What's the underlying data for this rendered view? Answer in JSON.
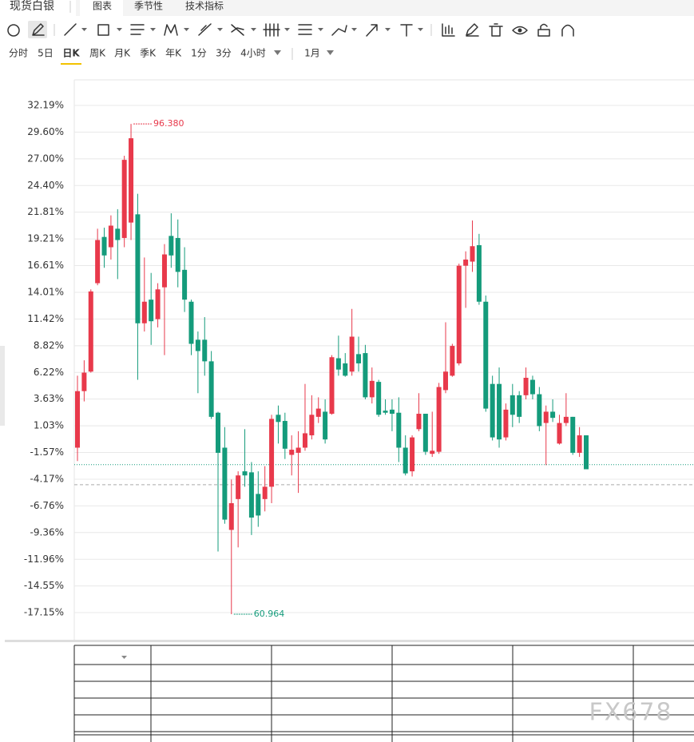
{
  "header": {
    "title": "现货白银",
    "tabs": [
      "图表",
      "季节性",
      "技术指标"
    ]
  },
  "periods": [
    "分时",
    "5日",
    "日K",
    "周K",
    "月K",
    "季K",
    "年K",
    "1分",
    "3分",
    "4小时",
    "1月"
  ],
  "watermark": "FX678",
  "chart_data": {
    "type": "candlestick",
    "up_color": "#e8394b",
    "down_color": "#149b7b",
    "grid": true,
    "ylim": [
      -19.71,
      34.68
    ],
    "yticks": [
      {
        "value": 32.19,
        "label": "32.19%"
      },
      {
        "value": 29.6,
        "label": "29.60%"
      },
      {
        "value": 27.0,
        "label": "27.00%"
      },
      {
        "value": 24.4,
        "label": "24.40%"
      },
      {
        "value": 21.81,
        "label": "21.81%"
      },
      {
        "value": 19.21,
        "label": "19.21%"
      },
      {
        "value": 16.61,
        "label": "16.61%"
      },
      {
        "value": 14.01,
        "label": "14.01%"
      },
      {
        "value": 11.42,
        "label": "11.42%"
      },
      {
        "value": 8.82,
        "label": "8.82%"
      },
      {
        "value": 6.22,
        "label": "6.22%"
      },
      {
        "value": 3.63,
        "label": "3.63%"
      },
      {
        "value": 1.03,
        "label": "1.03%"
      },
      {
        "value": -1.57,
        "label": "-1.57%"
      },
      {
        "value": -4.17,
        "label": "-4.17%"
      },
      {
        "value": -6.76,
        "label": "-6.76%"
      },
      {
        "value": -9.36,
        "label": "-9.36%"
      },
      {
        "value": -11.96,
        "label": "-11.96%"
      },
      {
        "value": -14.55,
        "label": "-14.55%"
      },
      {
        "value": -17.15,
        "label": "-17.15%"
      }
    ],
    "open": [
      -1.1,
      4.4,
      6.3,
      14.9,
      19.4,
      18.4,
      20.2,
      19.3,
      20.8,
      21.6,
      11.0,
      13.3,
      11.4,
      14.5,
      19.5,
      19.3,
      16.2,
      13.1,
      9.4,
      9.4,
      7.3,
      2.3,
      -1.1,
      -9.1,
      -6.1,
      -3.4,
      -3.5,
      -5.6,
      -6.1,
      -4.9,
      2.1,
      1.5,
      -1.8,
      -1.6,
      -1.1,
      0.1,
      1.9,
      2.4,
      2.2,
      7.6,
      7.1,
      6.3,
      8.0,
      8.1,
      3.8,
      5.3,
      2.5,
      2.6,
      2.3,
      -1.1,
      -3.4,
      0.7,
      2.2,
      -1.7,
      -1.5,
      4.5,
      5.9,
      7.1,
      16.6,
      17.0,
      18.6,
      13.1,
      5.1,
      5.1,
      -0.1,
      4.0,
      4.0,
      4.0,
      5.5,
      4.1,
      1.3,
      2.4,
      -0.7,
      1.3,
      1.9,
      -1.6,
      0.1
    ],
    "high": [
      5.9,
      7.4,
      14.3,
      20.2,
      20.3,
      21.5,
      22.1,
      27.3,
      30.4,
      23.6,
      17.4,
      15.9,
      14.9,
      18.7,
      21.7,
      21.1,
      18.4,
      13.3,
      10.2,
      11.6,
      8.3,
      2.4,
      0.9,
      -4.2,
      -3.4,
      0.7,
      -2.5,
      -3.4,
      -2.9,
      2.1,
      3.0,
      2.3,
      0.1,
      0.5,
      5.1,
      4.0,
      3.8,
      3.6,
      7.9,
      9.8,
      8.1,
      12.4,
      9.7,
      8.9,
      6.7,
      5.5,
      3.6,
      3.6,
      3.8,
      0.1,
      0.1,
      4.2,
      2.2,
      2.4,
      5.2,
      11.1,
      9.0,
      16.8,
      18.0,
      21.0,
      19.7,
      13.7,
      5.9,
      6.7,
      3.2,
      5.1,
      4.4,
      6.7,
      5.9,
      4.8,
      3.0,
      3.6,
      2.1,
      4.2,
      1.9,
      0.9,
      0.1
    ],
    "low": [
      -2.4,
      3.4,
      6.2,
      14.7,
      16.4,
      17.2,
      15.3,
      18.4,
      19.1,
      5.5,
      10.2,
      8.9,
      10.6,
      7.9,
      16.4,
      14.5,
      12.1,
      7.9,
      4.2,
      5.9,
      1.7,
      -11.2,
      -8.5,
      -17.3,
      -10.8,
      -4.9,
      -9.6,
      -8.8,
      -7.3,
      -6.5,
      -0.7,
      -2.2,
      -3.8,
      -5.5,
      -1.4,
      -0.3,
      1.3,
      -0.7,
      2.1,
      5.9,
      5.8,
      5.9,
      6.3,
      3.6,
      3.2,
      1.9,
      2.1,
      0.5,
      -2.5,
      -3.8,
      -3.9,
      0.5,
      -1.8,
      -2.0,
      -1.7,
      4.2,
      5.8,
      6.9,
      12.5,
      16.0,
      12.8,
      2.4,
      -0.4,
      -1.1,
      -0.4,
      0.9,
      1.3,
      3.6,
      3.6,
      0.5,
      -2.8,
      1.4,
      -0.8,
      1.0,
      -1.8,
      -2.0,
      -3.2
    ],
    "close": [
      4.4,
      6.2,
      14.1,
      19.1,
      17.6,
      20.5,
      19.1,
      26.9,
      29.0,
      11.0,
      13.1,
      11.2,
      14.3,
      17.7,
      17.6,
      16.0,
      13.3,
      9.0,
      8.3,
      7.3,
      1.9,
      -1.6,
      -8.1,
      -6.5,
      -3.8,
      -3.8,
      -7.9,
      -7.7,
      -4.9,
      1.7,
      1.4,
      -1.2,
      -1.3,
      -1.1,
      0.3,
      2.1,
      2.7,
      -0.3,
      7.7,
      6.5,
      5.9,
      9.7,
      7.1,
      3.8,
      5.4,
      2.1,
      2.3,
      2.2,
      -1.1,
      -3.6,
      -0.1,
      2.2,
      -1.5,
      -1.4,
      4.8,
      6.3,
      8.8,
      16.6,
      17.2,
      18.5,
      13.1,
      2.7,
      -0.1,
      -0.3,
      2.6,
      2.1,
      1.9,
      5.7,
      4.1,
      1.0,
      2.4,
      1.8,
      1.3,
      1.9,
      -1.6,
      0.1,
      -3.2
    ],
    "max_label": "96.380",
    "min_label": "60.964",
    "hlines": [
      {
        "value": -2.75,
        "color": "#149b7b",
        "style": "dotted"
      },
      {
        "value": -4.7,
        "color": "#aaaaaa",
        "style": "dashed"
      }
    ]
  }
}
